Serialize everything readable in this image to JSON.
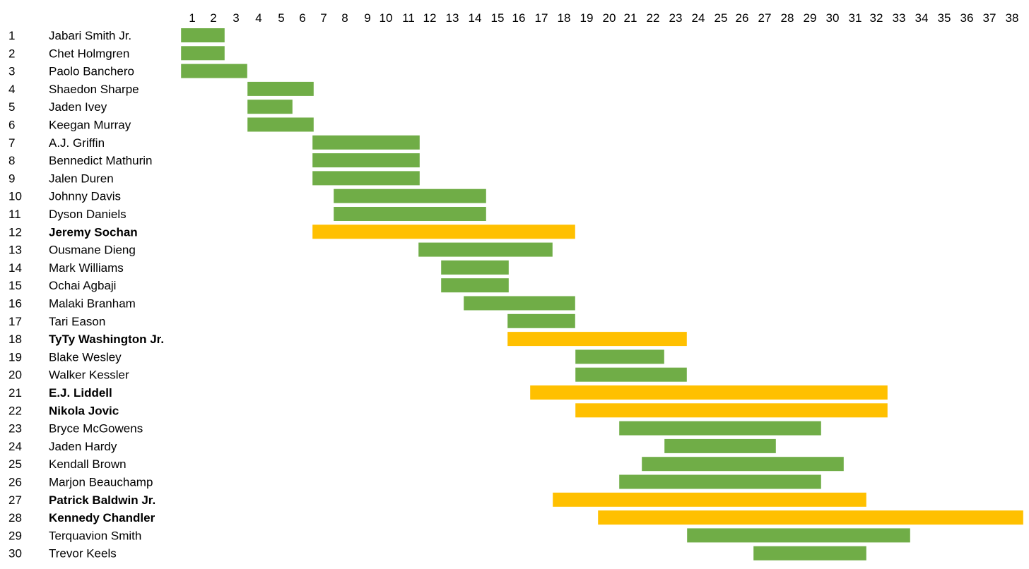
{
  "colors": {
    "normal": "#70AD47",
    "highlight": "#FFC000"
  },
  "chart_data": {
    "type": "bar",
    "orientation": "horizontal-range",
    "title": "",
    "xlabel": "",
    "ylabel": "",
    "xlim": [
      1,
      38
    ],
    "x_ticks": [
      1,
      2,
      3,
      4,
      5,
      6,
      7,
      8,
      9,
      10,
      11,
      12,
      13,
      14,
      15,
      16,
      17,
      18,
      19,
      20,
      21,
      22,
      23,
      24,
      25,
      26,
      27,
      28,
      29,
      30,
      31,
      32,
      33,
      34,
      35,
      36,
      37,
      38
    ],
    "x_axis_position": "top",
    "grid": false,
    "legend": "none",
    "rows": [
      {
        "rank": 1,
        "name": "Jabari Smith Jr.",
        "start": 1,
        "end": 2,
        "highlight": false
      },
      {
        "rank": 2,
        "name": "Chet Holmgren",
        "start": 1,
        "end": 2,
        "highlight": false
      },
      {
        "rank": 3,
        "name": "Paolo Banchero",
        "start": 1,
        "end": 3,
        "highlight": false
      },
      {
        "rank": 4,
        "name": "Shaedon Sharpe",
        "start": 4,
        "end": 6,
        "highlight": false
      },
      {
        "rank": 5,
        "name": "Jaden Ivey",
        "start": 4,
        "end": 5,
        "highlight": false
      },
      {
        "rank": 6,
        "name": "Keegan Murray",
        "start": 4,
        "end": 6,
        "highlight": false
      },
      {
        "rank": 7,
        "name": "A.J. Griffin",
        "start": 7,
        "end": 11,
        "highlight": false
      },
      {
        "rank": 8,
        "name": "Bennedict Mathurin",
        "start": 7,
        "end": 11,
        "highlight": false
      },
      {
        "rank": 9,
        "name": "Jalen Duren",
        "start": 7,
        "end": 11,
        "highlight": false
      },
      {
        "rank": 10,
        "name": "Johnny Davis",
        "start": 8,
        "end": 14,
        "highlight": false
      },
      {
        "rank": 11,
        "name": "Dyson Daniels",
        "start": 8,
        "end": 14,
        "highlight": false
      },
      {
        "rank": 12,
        "name": "Jeremy Sochan",
        "start": 7,
        "end": 18,
        "highlight": true
      },
      {
        "rank": 13,
        "name": "Ousmane Dieng",
        "start": 12,
        "end": 17,
        "highlight": false
      },
      {
        "rank": 14,
        "name": "Mark Williams",
        "start": 13,
        "end": 15,
        "highlight": false
      },
      {
        "rank": 15,
        "name": "Ochai Agbaji",
        "start": 13,
        "end": 15,
        "highlight": false
      },
      {
        "rank": 16,
        "name": "Malaki Branham",
        "start": 14,
        "end": 18,
        "highlight": false
      },
      {
        "rank": 17,
        "name": "Tari Eason",
        "start": 16,
        "end": 18,
        "highlight": false
      },
      {
        "rank": 18,
        "name": "TyTy Washington Jr.",
        "start": 16,
        "end": 23,
        "highlight": true
      },
      {
        "rank": 19,
        "name": "Blake Wesley",
        "start": 19,
        "end": 22,
        "highlight": false
      },
      {
        "rank": 20,
        "name": "Walker Kessler",
        "start": 19,
        "end": 23,
        "highlight": false
      },
      {
        "rank": 21,
        "name": "E.J. Liddell",
        "start": 17,
        "end": 32,
        "highlight": true
      },
      {
        "rank": 22,
        "name": "Nikola Jovic",
        "start": 19,
        "end": 32,
        "highlight": true
      },
      {
        "rank": 23,
        "name": "Bryce McGowens",
        "start": 21,
        "end": 29,
        "highlight": false
      },
      {
        "rank": 24,
        "name": "Jaden Hardy",
        "start": 23,
        "end": 27,
        "highlight": false
      },
      {
        "rank": 25,
        "name": "Kendall Brown",
        "start": 22,
        "end": 30,
        "highlight": false
      },
      {
        "rank": 26,
        "name": "Marjon Beauchamp",
        "start": 21,
        "end": 29,
        "highlight": false
      },
      {
        "rank": 27,
        "name": "Patrick Baldwin Jr.",
        "start": 18,
        "end": 31,
        "highlight": true
      },
      {
        "rank": 28,
        "name": "Kennedy Chandler",
        "start": 20,
        "end": 38,
        "highlight": true
      },
      {
        "rank": 29,
        "name": "Terquavion Smith",
        "start": 24,
        "end": 33,
        "highlight": false
      },
      {
        "rank": 30,
        "name": "Trevor Keels",
        "start": 27,
        "end": 31,
        "highlight": false
      }
    ]
  }
}
